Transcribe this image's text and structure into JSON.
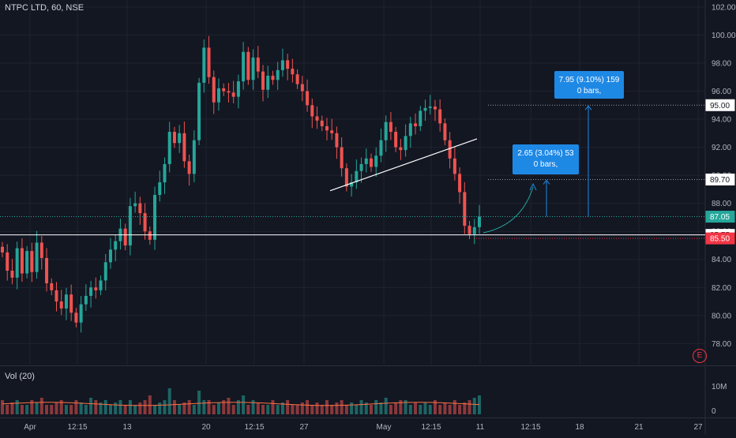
{
  "header": {
    "symbol": "NTPC LTD, 60, NSE"
  },
  "volume_pane": {
    "title": "Vol (20)",
    "axis_labels": [
      "10M",
      "0"
    ]
  },
  "earnings_badge": "E",
  "colors": {
    "background": "#131722",
    "up": "#26a69a",
    "down": "#ef5350",
    "grid": "#1f2330",
    "line_white": "#ffffff",
    "accent_blue": "#1e88e5",
    "price_tag_green": "#26a69a",
    "price_tag_red": "#f23645"
  },
  "chart_data": {
    "type": "candlestick",
    "y_range": [
      76.5,
      102.5
    ],
    "y_ticks": [
      "102.00",
      "100.00",
      "98.00",
      "96.00",
      "94.00",
      "92.00",
      "90.00",
      "88.00",
      "86.00",
      "84.00",
      "82.00",
      "80.00",
      "78.00"
    ],
    "x_tick_labels": [
      "Apr",
      "12:15",
      "13",
      "20",
      "12:15",
      "27",
      "May",
      "12:15",
      "11",
      "12:15",
      "18",
      "21",
      "27"
    ],
    "price_tags": [
      {
        "label": "95.00",
        "style": "outline"
      },
      {
        "label": "89.70",
        "style": "outline"
      },
      {
        "label": "87.05",
        "style": "green"
      },
      {
        "label": "85.75",
        "style": "outline"
      },
      {
        "label": "85.50",
        "style": "red"
      }
    ],
    "annotations": [
      {
        "line1": "2.65 (3.04%) 53",
        "line2": "0 bars,"
      },
      {
        "line1": "7.95 (9.10%) 159",
        "line2": "0 bars,"
      }
    ],
    "horizontal_level": 85.75,
    "trendline": {
      "from": 88.9,
      "to": 92.6
    },
    "volume_series_legend": "Vol (20)",
    "close_path": [
      84.5,
      83.2,
      82.7,
      84.8,
      83.0,
      84.6,
      83.1,
      85.2,
      84.1,
      82.3,
      81.8,
      81.0,
      80.5,
      81.5,
      80.2,
      79.5,
      80.8,
      81.4,
      82.0,
      81.8,
      82.5,
      83.8,
      84.7,
      85.3,
      86.2,
      85.0,
      87.8,
      88.0,
      87.3,
      86.0,
      85.4,
      88.6,
      89.5,
      90.8,
      93.1,
      92.3,
      93.0,
      91.0,
      90.1,
      92.5,
      96.6,
      99.1,
      97.0,
      95.2,
      96.2,
      96.0,
      95.9,
      95.6,
      96.7,
      98.8,
      96.8,
      98.4,
      97.4,
      96.1,
      97.1,
      96.8,
      97.5,
      98.2,
      97.6,
      97.2,
      96.5,
      96.0,
      95.0,
      94.2,
      93.9,
      93.5,
      93.2,
      93.0,
      92.0,
      90.5,
      89.2,
      89.5,
      90.3,
      90.8,
      91.2,
      90.6,
      91.4,
      92.5,
      93.8,
      93.1,
      92.0,
      91.8,
      92.8,
      93.7,
      93.5,
      94.6,
      94.8,
      94.9,
      94.7,
      93.7,
      92.5,
      91.2,
      90.1,
      88.8,
      86.4,
      85.8,
      86.3,
      87.05
    ],
    "volume_path": [
      0.3,
      0.2,
      0.25,
      0.3,
      0.2,
      0.2,
      0.3,
      0.25,
      0.35,
      0.2,
      0.2,
      0.25,
      0.3,
      0.2,
      0.2,
      0.3,
      0.25,
      0.2,
      0.35,
      0.3,
      0.25,
      0.3,
      0.2,
      0.25,
      0.3,
      0.2,
      0.3,
      0.2,
      0.25,
      0.3,
      0.4,
      0.2,
      0.25,
      0.3,
      0.55,
      0.3,
      0.2,
      0.25,
      0.3,
      0.2,
      0.5,
      0.3,
      0.3,
      0.2,
      0.25,
      0.3,
      0.35,
      0.2,
      0.3,
      0.4,
      0.2,
      0.3,
      0.25,
      0.2,
      0.2,
      0.3,
      0.2,
      0.25,
      0.3,
      0.2,
      0.2,
      0.25,
      0.3,
      0.2,
      0.25,
      0.2,
      0.3,
      0.2,
      0.25,
      0.3,
      0.2,
      0.25,
      0.2,
      0.3,
      0.25,
      0.2,
      0.3,
      0.25,
      0.35,
      0.2,
      0.25,
      0.3,
      0.3,
      0.2,
      0.25,
      0.2,
      0.25,
      0.2,
      0.3,
      0.2,
      0.25,
      0.2,
      0.3,
      0.2,
      0.25,
      0.3,
      0.35,
      0.4
    ]
  }
}
